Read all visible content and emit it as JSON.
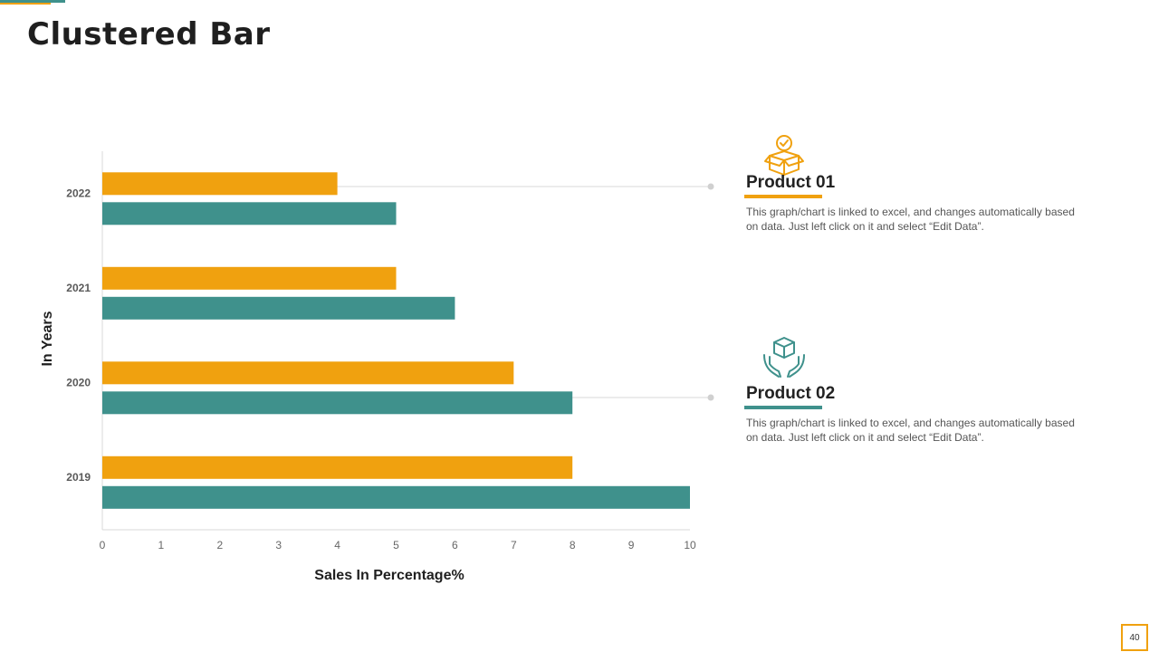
{
  "slide": {
    "title": "Clustered Bar",
    "page_number": "40"
  },
  "colors": {
    "product01": "#f0a10f",
    "product02": "#3f918c"
  },
  "products": [
    {
      "title": "Product 01",
      "icon": "open-box-check-icon",
      "color": "#f0a10f",
      "description": "This graph/chart is linked to excel, and changes automatically based on data. Just left click on it and select “Edit Data”."
    },
    {
      "title": "Product 02",
      "icon": "hands-holding-box-icon",
      "color": "#3f918c",
      "description": "This graph/chart is linked to excel, and changes automatically based on data. Just left click on it and select “Edit Data”."
    }
  ],
  "chart_data": {
    "type": "bar",
    "orientation": "horizontal",
    "categories": [
      "2022",
      "2021",
      "2020",
      "2019"
    ],
    "series": [
      {
        "name": "Product 01",
        "color": "#f0a10f",
        "values": [
          4,
          5,
          7,
          8
        ]
      },
      {
        "name": "Product 02",
        "color": "#3f918c",
        "values": [
          5,
          6,
          8,
          10
        ]
      }
    ],
    "xlabel": "Sales In Percentage%",
    "ylabel": "In Years",
    "xlim": [
      0,
      10
    ],
    "xticks": [
      "0",
      "1",
      "2",
      "3",
      "4",
      "5",
      "6",
      "7",
      "8",
      "9",
      "10"
    ],
    "grid": false
  }
}
